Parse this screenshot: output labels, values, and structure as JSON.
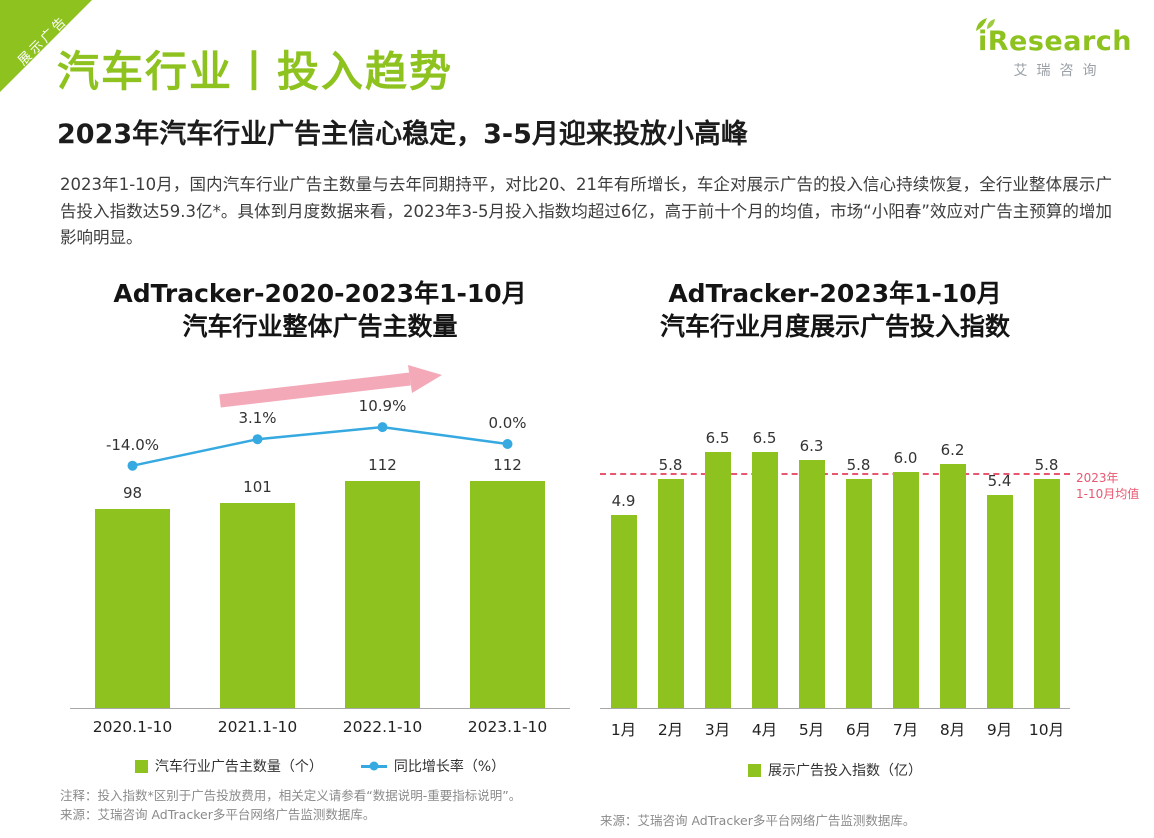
{
  "ribbon": {
    "label": "展示广告"
  },
  "logo": {
    "brand": "iResearch",
    "brand_cn": "艾瑞咨询"
  },
  "page": {
    "title": "汽车行业丨投入趋势",
    "subtitle": "2023年汽车行业广告主信心稳定，3-5月迎来投放小高峰",
    "body": "2023年1-10月，国内汽车行业广告主数量与去年同期持平，对比20、21年有所增长，车企对展示广告的投入信心持续恢复，全行业整体展示广告投入指数达59.3亿*。具体到月度数据来看，2023年3-5月投入指数均超过6亿，高于前十个月的均值，市场“小阳春”效应对广告主预算的增加影响明显。"
  },
  "charts": {
    "left": {
      "title_line1": "AdTracker-2020-2023年1-10月",
      "title_line2": "汽车行业整体广告主数量",
      "legend_bar": "汽车行业广告主数量（个）",
      "legend_line": "同比增长率（%）"
    },
    "right": {
      "title_line1": "AdTracker-2023年1-10月",
      "title_line2": "汽车行业月度展示广告投入指数",
      "legend_bar": "展示广告投入指数（亿）",
      "mean_label_line1": "2023年",
      "mean_label_line2": "1-10月均值"
    }
  },
  "footnotes": {
    "note": "注释：投入指数*区别于广告投放费用，相关定义请参看“数据说明-重要指标说明”。",
    "source_left": "来源：艾瑞咨询 AdTracker多平台网络广告监测数据库。",
    "source_right": "来源：艾瑞咨询 AdTracker多平台网络广告监测数据库。"
  },
  "colors": {
    "green": "#8DC21F",
    "blue": "#36A9E1",
    "pink_arrow": "#F4A9B8",
    "red_dashed": "#E8576F"
  },
  "chart_data": [
    {
      "type": "bar",
      "title": "AdTracker-2020-2023年1-10月 汽车行业整体广告主数量",
      "categories": [
        "2020.1-10",
        "2021.1-10",
        "2022.1-10",
        "2023.1-10"
      ],
      "series": [
        {
          "name": "汽车行业广告主数量（个）",
          "chart": "bar",
          "values": [
            98,
            101,
            112,
            112
          ]
        },
        {
          "name": "同比增长率（%）",
          "chart": "line",
          "values": [
            -14.0,
            3.1,
            10.9,
            0.0
          ],
          "labels": [
            "-14.0%",
            "3.1%",
            "10.9%",
            "0.0%"
          ]
        }
      ],
      "annotations": [
        {
          "type": "trend-arrow",
          "direction": "up-right"
        }
      ],
      "xlabel": "",
      "ylabel": "",
      "grid": false,
      "legend_position": "bottom"
    },
    {
      "type": "bar",
      "title": "AdTracker-2023年1-10月 汽车行业月度展示广告投入指数",
      "categories": [
        "1月",
        "2月",
        "3月",
        "4月",
        "5月",
        "6月",
        "7月",
        "8月",
        "9月",
        "10月"
      ],
      "values": [
        4.9,
        5.8,
        6.5,
        6.5,
        6.3,
        5.8,
        6.0,
        6.2,
        5.4,
        5.8
      ],
      "ylabel": "展示广告投入指数（亿）",
      "annotations": [
        {
          "type": "dashed-mean-line",
          "label": "2023年1-10月均值",
          "value": 5.92
        }
      ],
      "grid": false,
      "legend_position": "bottom"
    }
  ]
}
